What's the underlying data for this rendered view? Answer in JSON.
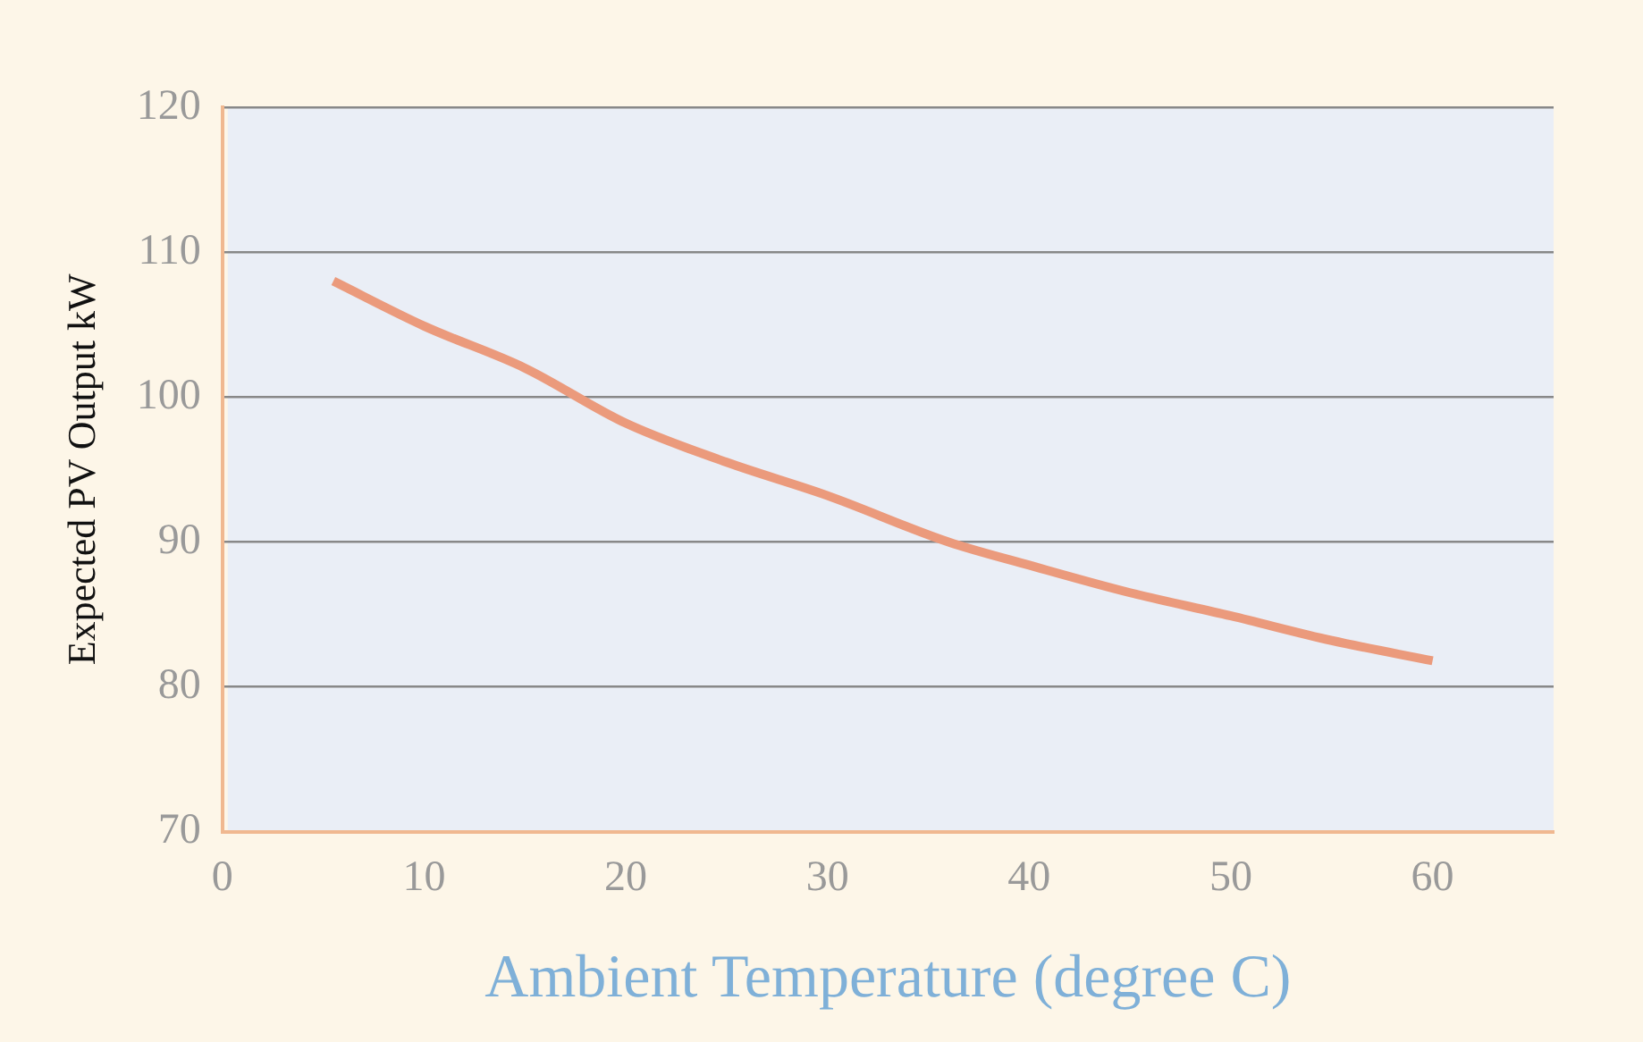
{
  "chart_data": {
    "type": "line",
    "xlabel": "Ambient Temperature (degree C)",
    "ylabel": "Expected PV Output kW",
    "x": [
      5.5,
      10,
      15,
      20,
      25,
      30,
      36,
      40,
      45,
      50,
      55,
      60
    ],
    "series": [
      {
        "color": "#eb9a7c",
        "values": [
          108,
          104.9,
          102,
          98.2,
          95.5,
          93.2,
          90,
          88.4,
          86.5,
          84.9,
          83.2,
          81.8
        ]
      }
    ],
    "xlim": [
      0,
      66
    ],
    "xticks": [
      0,
      10,
      20,
      30,
      40,
      50,
      60
    ],
    "ylim": [
      70,
      120
    ],
    "yticks": [
      70,
      80,
      90,
      100,
      110,
      120
    ],
    "grid": "y",
    "legend": false,
    "marker": "none",
    "line_style": "solid"
  }
}
